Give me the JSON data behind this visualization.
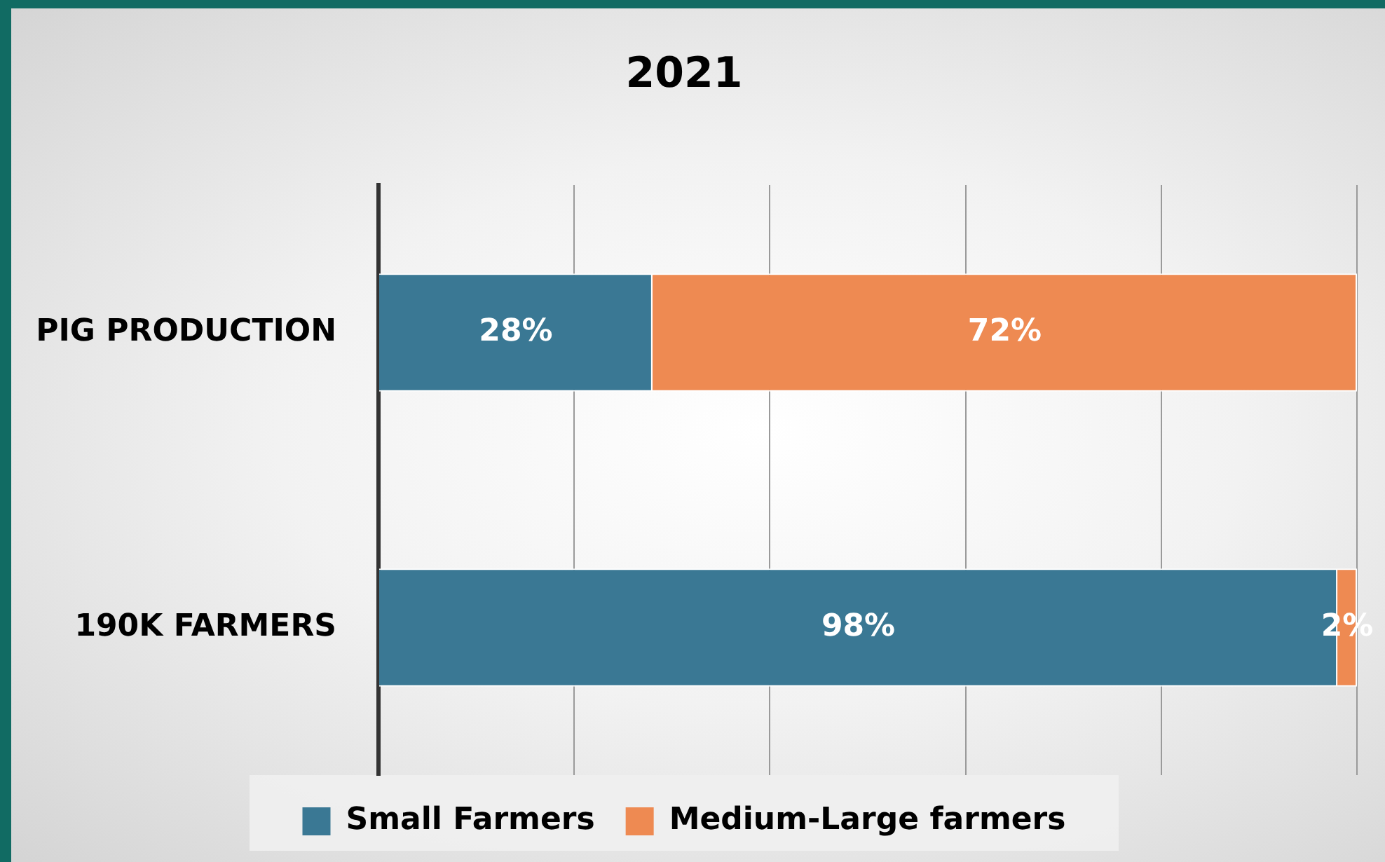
{
  "chart_data": {
    "type": "bar",
    "orientation": "horizontal",
    "stacked": true,
    "title": "2021",
    "categories": [
      "PIG PRODUCTION",
      "190K FARMERS"
    ],
    "series": [
      {
        "name": "Small Farmers",
        "color": "#3a7894",
        "values": [
          28,
          98
        ],
        "value_labels": [
          "28%",
          "98%"
        ]
      },
      {
        "name": "Medium-Large farmers",
        "color": "#ee8a52",
        "values": [
          72,
          2
        ],
        "value_labels": [
          "72%",
          "2%"
        ]
      }
    ],
    "xlim": [
      0,
      100
    ],
    "xticks": [
      {
        "value": 0,
        "label": null
      },
      {
        "value": 20,
        "label": null
      },
      {
        "value": 40,
        "label": null
      },
      {
        "value": 60,
        "label": null
      },
      {
        "value": 80,
        "label": null
      },
      {
        "value": 100,
        "label": null
      }
    ],
    "grid": "x",
    "tick_labels": "y",
    "legend": "bottom"
  }
}
